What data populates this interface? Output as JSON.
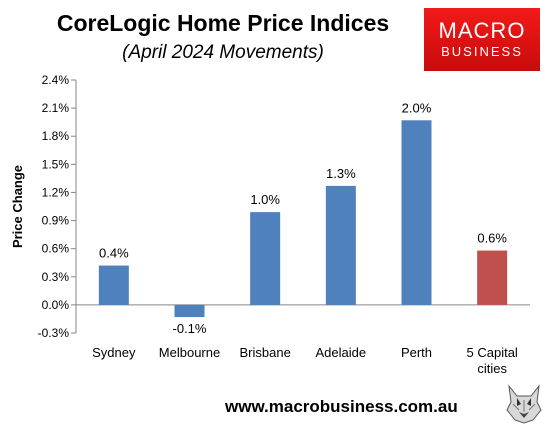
{
  "header": {
    "title": "CoreLogic Home Price Indices",
    "subtitle": "(April 2024 Movements)"
  },
  "logo": {
    "line1": "MACRO",
    "line2": "BUSINESS",
    "background": "#e01212"
  },
  "footer": {
    "url": "www.macrobusiness.com.au"
  },
  "chart_data": {
    "type": "bar",
    "categories": [
      "Sydney",
      "Melbourne",
      "Brisbane",
      "Adelaide",
      "Perth",
      "5 Capital cities"
    ],
    "category_lines": [
      [
        "Sydney"
      ],
      [
        "Melbourne"
      ],
      [
        "Brisbane"
      ],
      [
        "Adelaide"
      ],
      [
        "Perth"
      ],
      [
        "5 Capital",
        "cities"
      ]
    ],
    "values": [
      0.42,
      -0.13,
      0.99,
      1.27,
      1.97,
      0.58
    ],
    "data_labels": [
      "0.4%",
      "-0.1%",
      "1.0%",
      "1.3%",
      "2.0%",
      "0.6%"
    ],
    "colors": [
      "#4f81bd",
      "#4f81bd",
      "#4f81bd",
      "#4f81bd",
      "#4f81bd",
      "#c0504d"
    ],
    "ylabel": "Price Change",
    "ylim": [
      -0.3,
      2.4
    ],
    "yticks": [
      -0.3,
      0.0,
      0.3,
      0.6,
      0.9,
      1.2,
      1.5,
      1.8,
      2.1,
      2.4
    ],
    "ytick_labels": [
      "-0.3%",
      "0.0%",
      "0.3%",
      "0.6%",
      "0.9%",
      "1.2%",
      "1.5%",
      "1.8%",
      "2.1%",
      "2.4%"
    ],
    "grid": false,
    "legend": "none"
  }
}
